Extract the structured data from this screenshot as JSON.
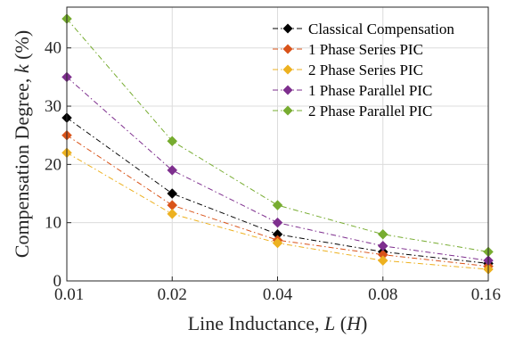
{
  "chart_data": {
    "type": "line",
    "x": [
      0.01,
      0.02,
      0.04,
      0.08,
      0.16
    ],
    "x_tick_labels": [
      "0.01",
      "0.02",
      "0.04",
      "0.08",
      "0.16"
    ],
    "x_scale": "log2",
    "xlim": [
      0.01,
      0.16
    ],
    "ylim": [
      0,
      47
    ],
    "y_ticks": [
      0,
      10,
      20,
      30,
      40
    ],
    "y_tick_labels": [
      "0",
      "10",
      "20",
      "30",
      "40"
    ],
    "xlabel": {
      "text": "Line Inductance, ",
      "var": "L",
      "mid": " (",
      "unit": "H",
      "end": ")"
    },
    "ylabel": {
      "text": "Compensation Degree, ",
      "var": "k",
      "unit": " (%)"
    },
    "grid": true,
    "legend_position": "top-right",
    "series": [
      {
        "name": "Classical Compensation",
        "color": "#000000",
        "values": [
          28,
          15,
          8,
          5,
          3
        ]
      },
      {
        "name": "1 Phase Series PIC",
        "color": "#D95319",
        "values": [
          25,
          13,
          7,
          4.5,
          2.5
        ]
      },
      {
        "name": "2 Phase Series PIC",
        "color": "#EDB120",
        "values": [
          22,
          11.5,
          6.5,
          3.5,
          2
        ]
      },
      {
        "name": "1 Phase Parallel PIC",
        "color": "#7E2F8E",
        "values": [
          35,
          19,
          10,
          6,
          3.5
        ]
      },
      {
        "name": "2 Phase Parallel PIC",
        "color": "#77AC30",
        "values": [
          45,
          24,
          13,
          8,
          5
        ]
      }
    ]
  }
}
